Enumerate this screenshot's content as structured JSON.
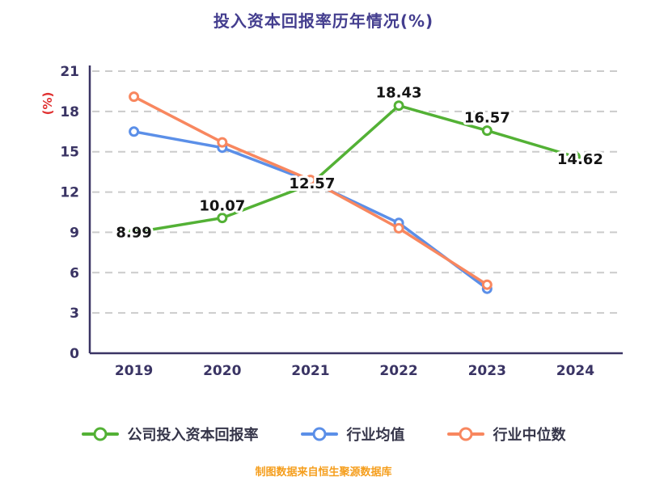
{
  "title": "投入资本回报率历年情况(%)",
  "footer": "制图数据来自恒生聚源数据库",
  "chart_data": {
    "type": "line",
    "title": "投入资本回报率历年情况(%)",
    "ylabel": "(%)",
    "ylabel_color": "#e03131",
    "categories": [
      "2019",
      "2020",
      "2021",
      "2022",
      "2023",
      "2024"
    ],
    "ylim": [
      0,
      21
    ],
    "yticks": [
      0,
      3,
      6,
      9,
      12,
      15,
      18,
      21
    ],
    "grid": "horizontal-dashed",
    "legend_position": "bottom",
    "axis_color": "#3a3464",
    "grid_color": "#cbcbcb",
    "series": [
      {
        "name": "公司投入资本回报率",
        "color": "#53b135",
        "values": [
          8.99,
          10.07,
          12.57,
          18.43,
          16.57,
          14.62
        ],
        "point_labels": [
          "8.99",
          "10.07",
          "12.57",
          "18.43",
          "16.57",
          "14.62"
        ],
        "label_offsets": [
          [
            0,
            6
          ],
          [
            0,
            -9
          ],
          [
            2,
            5
          ],
          [
            0,
            -10
          ],
          [
            0,
            -10
          ],
          [
            6,
            9
          ]
        ]
      },
      {
        "name": "行业均值",
        "color": "#5b8fe8",
        "values": [
          16.5,
          15.3,
          12.8,
          9.7,
          4.8,
          null
        ]
      },
      {
        "name": "行业中位数",
        "color": "#f8875f",
        "values": [
          19.1,
          15.7,
          12.9,
          9.3,
          5.1,
          null
        ]
      }
    ]
  }
}
